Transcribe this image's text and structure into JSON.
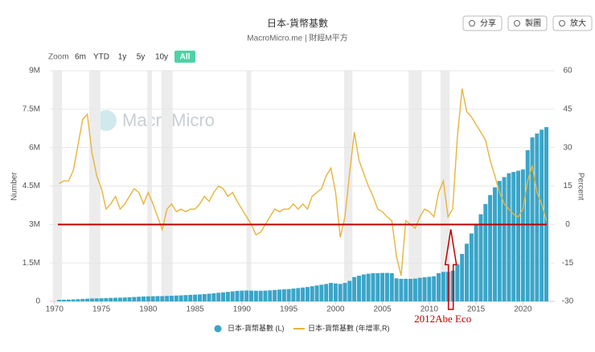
{
  "chart_data": {
    "type": "bar-line",
    "title": "日本-貨幣基數",
    "subtitle": "MacroMicro.me | 財經M平方",
    "watermark": "MacroMicro",
    "zoom_label": "Zoom",
    "ranges": [
      "6m",
      "YTD",
      "1y",
      "5y",
      "10y",
      "All"
    ],
    "actions": [
      "分享",
      "製圖",
      "放大"
    ],
    "ylabel": "Number",
    "y2label": "Percent",
    "xlim": [
      1969.5,
      2023.4
    ],
    "xticks": [
      1970,
      1975,
      1980,
      1985,
      1990,
      1995,
      2000,
      2005,
      2010,
      2015,
      2020
    ],
    "ylim": [
      0,
      9000000
    ],
    "yticks": [
      0,
      {
        "value": 1500000,
        "label": "1.5M"
      },
      {
        "value": 3000000,
        "label": "3M"
      },
      {
        "value": 4500000,
        "label": "4.5M"
      },
      {
        "value": 6000000,
        "label": "6M"
      },
      {
        "value": 7500000,
        "label": "7.5M"
      },
      {
        "value": 9000000,
        "label": "9M"
      }
    ],
    "y2lim": [
      -30,
      60
    ],
    "y2ticks": [
      -30,
      -15,
      0,
      15,
      30,
      45,
      60
    ],
    "grid": true,
    "shaded_periods": [
      [
        1969.8,
        1970.8
      ],
      [
        1973.7,
        1974.9
      ],
      [
        1979.9,
        1980.4
      ],
      [
        1981.4,
        1982.6
      ],
      [
        1990.5,
        1991.0
      ],
      [
        2000.9,
        2001.8
      ],
      [
        2007.8,
        2009.2
      ],
      [
        2011.2,
        2012.2
      ]
    ],
    "reference_line": {
      "value": 0,
      "axis": "y2",
      "color": "#c00000"
    },
    "annotation": {
      "text": "2012Abe Eco",
      "x": 2012.3,
      "color": "#c00000"
    },
    "x": [
      1970.5,
      1971,
      1971.5,
      1972,
      1972.5,
      1973,
      1973.5,
      1974,
      1974.5,
      1975,
      1975.5,
      1976,
      1976.5,
      1977,
      1977.5,
      1978,
      1978.5,
      1979,
      1979.5,
      1980,
      1980.5,
      1981,
      1981.5,
      1982,
      1982.5,
      1983,
      1983.5,
      1984,
      1984.5,
      1985,
      1985.5,
      1986,
      1986.5,
      1987,
      1987.5,
      1988,
      1988.5,
      1989,
      1989.5,
      1990,
      1990.5,
      1991,
      1991.5,
      1992,
      1992.5,
      1993,
      1993.5,
      1994,
      1994.5,
      1995,
      1995.5,
      1996,
      1996.5,
      1997,
      1997.5,
      1998,
      1998.5,
      1999,
      1999.5,
      2000,
      2000.5,
      2001,
      2001.5,
      2002,
      2002.5,
      2003,
      2003.5,
      2004,
      2004.5,
      2005,
      2005.5,
      2006,
      2006.5,
      2007,
      2007.5,
      2008,
      2008.5,
      2009,
      2009.5,
      2010,
      2010.5,
      2011,
      2011.5,
      2012,
      2012.5,
      2013,
      2013.5,
      2014,
      2014.5,
      2015,
      2015.5,
      2016,
      2016.5,
      2017,
      2017.5,
      2018,
      2018.5,
      2019,
      2019.5,
      2020,
      2020.5,
      2021,
      2021.5,
      2022,
      2022.5
    ],
    "series": [
      {
        "name": "日本-貨幣基數 (L)",
        "color": "#3aa5c8",
        "values": [
          60000,
          65000,
          70000,
          78000,
          85000,
          95000,
          105000,
          112000,
          118000,
          122000,
          128000,
          135000,
          140000,
          145000,
          152000,
          160000,
          170000,
          180000,
          190000,
          195000,
          200000,
          205000,
          205000,
          212000,
          220000,
          228000,
          235000,
          245000,
          255000,
          262000,
          272000,
          285000,
          300000,
          315000,
          335000,
          350000,
          370000,
          390000,
          410000,
          420000,
          425000,
          420000,
          415000,
          415000,
          420000,
          430000,
          445000,
          460000,
          470000,
          480000,
          500000,
          520000,
          540000,
          560000,
          590000,
          620000,
          650000,
          680000,
          720000,
          700000,
          680000,
          720000,
          800000,
          950000,
          1000000,
          1050000,
          1080000,
          1100000,
          1100000,
          1110000,
          1110000,
          1100000,
          900000,
          880000,
          880000,
          880000,
          890000,
          920000,
          940000,
          960000,
          980000,
          1100000,
          1150000,
          1150000,
          1200000,
          1450000,
          1850000,
          2250000,
          2650000,
          3000000,
          3400000,
          3800000,
          4150000,
          4450000,
          4700000,
          4850000,
          5000000,
          5050000,
          5100000,
          5150000,
          5900000,
          6400000,
          6550000,
          6700000,
          6800000
        ]
      },
      {
        "name": "日本-貨幣基數 (年增率,R)",
        "color": "#e8b43c",
        "axis": "y2",
        "values": [
          16,
          17,
          17,
          21,
          31,
          41,
          43,
          28,
          19,
          14,
          6,
          8,
          11,
          6,
          8,
          11,
          14,
          12.5,
          8,
          12.5,
          8,
          3,
          -2,
          6,
          8,
          5,
          6,
          5,
          6,
          6,
          8,
          11,
          9,
          12.5,
          15,
          14,
          11,
          12.5,
          9,
          6,
          3,
          0,
          -4,
          -3,
          0,
          3,
          6,
          5,
          6,
          6,
          8,
          6,
          8,
          6,
          11,
          12.5,
          14,
          19,
          22,
          12.5,
          -5,
          3,
          20,
          36,
          25,
          20,
          15,
          11,
          6,
          5,
          3,
          1.5,
          -12.5,
          -20,
          1.5,
          0,
          -1.5,
          3,
          6,
          5,
          3,
          12.5,
          17,
          3,
          6,
          34,
          53,
          44,
          42,
          39,
          36,
          33,
          25,
          19,
          12.5,
          8,
          6,
          4,
          3,
          6,
          17,
          23,
          12.5,
          8,
          1.5
        ]
      }
    ]
  }
}
